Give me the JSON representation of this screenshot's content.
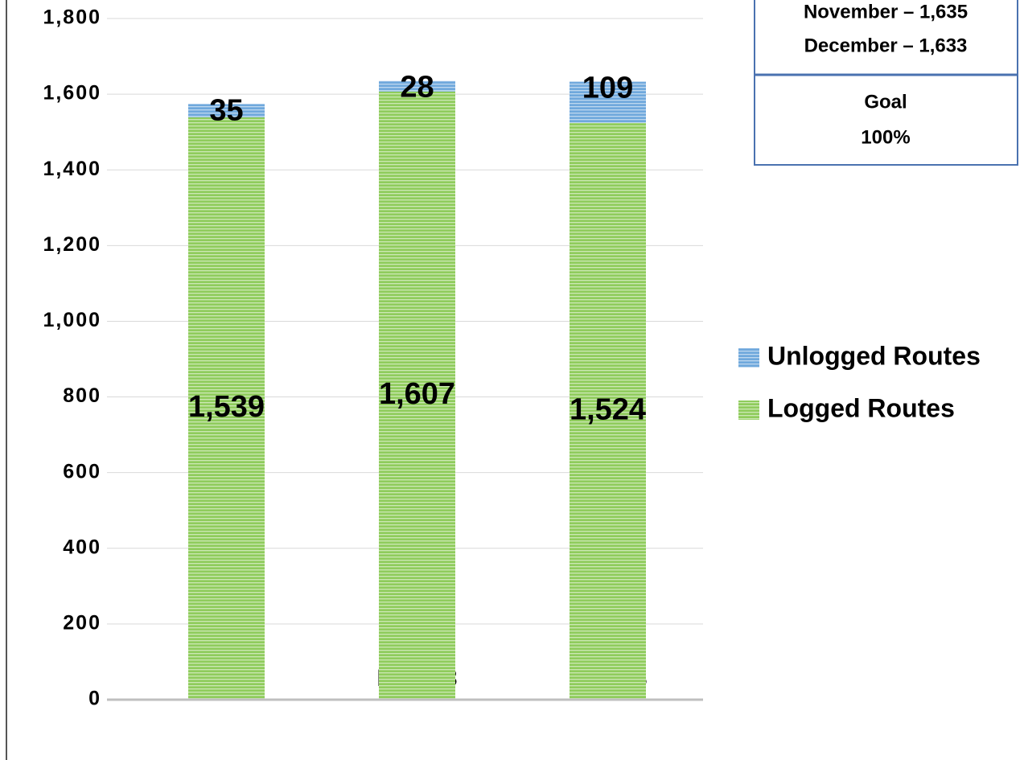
{
  "chart_data": {
    "type": "stacked_bar",
    "categories": [
      "Oct-23",
      "Nov-23",
      "Dec-23"
    ],
    "series": [
      {
        "name": "Logged Routes",
        "color": "#8fcc5c",
        "values": [
          1539,
          1607,
          1524
        ],
        "value_labels": [
          "1,539",
          "1,607",
          "1,524"
        ]
      },
      {
        "name": "Unlogged Routes",
        "color": "#6fa8dc",
        "values": [
          35,
          28,
          109
        ]
      }
    ],
    "ylim": [
      0,
      1800
    ],
    "yticks": [
      0,
      200,
      400,
      600,
      800,
      {
        "value": 1000,
        "label": "1,000"
      },
      {
        "value": 1200,
        "label": "1,200"
      },
      {
        "value": 1400,
        "label": "1,400"
      },
      {
        "value": 1600,
        "label": "1,600"
      },
      {
        "value": 1800,
        "label": "1,800"
      }
    ],
    "grid": true,
    "legend": "right",
    "annotations": [
      "November – 1,635",
      "December – 1,633",
      "Goal",
      "100%"
    ]
  }
}
